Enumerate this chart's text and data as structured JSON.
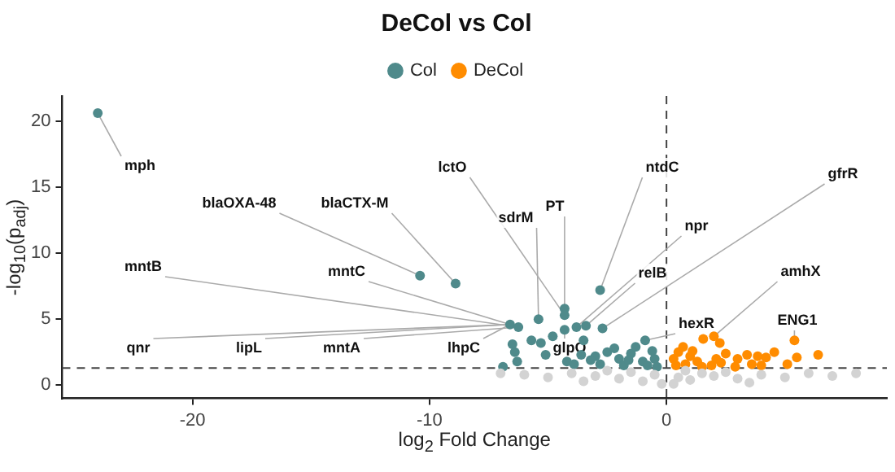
{
  "chart_data": {
    "type": "scatter",
    "title": "DeCol vs Col",
    "xlabel": "log$_{2}$ Fold Change",
    "ylabel": "-log$_{10}$(p$_{adj}$)",
    "xlim": [
      -25.5,
      9.3
    ],
    "xticks": [
      -20,
      -10,
      0
    ],
    "ylim": [
      -1,
      21.9
    ],
    "yticks": [
      0,
      5,
      10,
      15,
      20
    ],
    "grid": false,
    "legend": "top",
    "marker": "circle",
    "ref_lines": [
      {
        "axis": "x",
        "value": 0,
        "line_style": "dashed",
        "color": "#444444"
      },
      {
        "axis": "y",
        "value": 1.3,
        "line_style": "dashed",
        "color": "#444444"
      }
    ],
    "series": [
      {
        "color": "#d3d3d3",
        "x": [
          -7,
          -6,
          -5,
          -4,
          -3,
          -2,
          -1,
          -0.5,
          0.5,
          1,
          1.5,
          2,
          3,
          4,
          5,
          6,
          7,
          8,
          -1.5,
          -2.5,
          0.8,
          2.5,
          -3.5,
          3.5,
          -0.2,
          0.3
        ],
        "values": [
          0.9,
          0.8,
          0.6,
          0.9,
          0.7,
          0.5,
          0.3,
          0.8,
          0.6,
          0.4,
          0.9,
          0.7,
          0.5,
          0.8,
          0.6,
          0.9,
          0.7,
          0.9,
          1.0,
          1.1,
          1.1,
          1.0,
          0.3,
          0.2,
          0.1,
          0.1
        ]
      },
      {
        "name": "Col",
        "color": "#4f8a8b",
        "x": [
          -24,
          -10.4,
          -8.9,
          -2.8,
          -4.3,
          -4.3,
          -5.4,
          -6.6,
          -6.25,
          -3.4,
          -3.8,
          -4.3,
          -2.7,
          -0.9,
          -5.7,
          -5.3,
          -4.8,
          -3.5,
          -6.5,
          -6.4,
          -6.9,
          -6.3,
          -5.1,
          -4.2,
          -3,
          -2.5,
          -2,
          -1.5,
          -1,
          -0.5,
          -2.8,
          -1.8,
          -0.8,
          -2.2,
          -1.3,
          -3.2,
          -0.4,
          -1.6,
          -0.6,
          -3.6,
          -3.9
        ],
        "values": [
          20.6,
          8.3,
          7.7,
          7.2,
          5.8,
          5.3,
          5,
          4.6,
          4.4,
          4.5,
          4.4,
          4.2,
          4.3,
          3.4,
          3.4,
          3.2,
          3.7,
          3.4,
          3.1,
          2.5,
          1.4,
          1.8,
          2.3,
          1.8,
          2.2,
          2.5,
          2,
          2.4,
          1.8,
          2,
          1.6,
          1.5,
          1.5,
          2.8,
          2.9,
          1.9,
          1.4,
          1.9,
          2.6,
          2.3,
          1.6
        ]
      },
      {
        "name": "DeCol",
        "color": "#ff8c00",
        "x": [
          5.4,
          6.4,
          2,
          1.55,
          4.55,
          5.5,
          5.1,
          3.85,
          3.4,
          2.9,
          2.5,
          2.25,
          0.3,
          0.5,
          0.8,
          1,
          1.3,
          1.9,
          2.1,
          0.4,
          1.1,
          2.3,
          0.7,
          1.5,
          3,
          3.6,
          4.2,
          4
        ],
        "values": [
          3.4,
          2.3,
          3.7,
          3.5,
          2.5,
          2.1,
          1.6,
          2.2,
          2.3,
          1.4,
          2.4,
          3.2,
          2,
          2.5,
          1.6,
          2.2,
          1.8,
          1.5,
          2,
          1.5,
          2.6,
          1.7,
          2.9,
          1.4,
          2,
          1.6,
          2.1,
          1.5
        ]
      }
    ],
    "annotations": [
      {
        "text": "mph",
        "x": -24,
        "y": 20.6
      },
      {
        "text": "blaOXA-48",
        "x": -10.4,
        "y": 8.3
      },
      {
        "text": "blaCTX-M",
        "x": -8.9,
        "y": 7.7
      },
      {
        "text": "lctO",
        "x": -4.3,
        "y": 5.3
      },
      {
        "text": "PT",
        "x": -4.3,
        "y": 5.8
      },
      {
        "text": "ntdC",
        "x": -2.8,
        "y": 7.2
      },
      {
        "text": "npr",
        "x": -3.8,
        "y": 4.4
      },
      {
        "text": "relB",
        "x": -3.4,
        "y": 4.5
      },
      {
        "text": "gfrR",
        "x": -2.7,
        "y": 4.3
      },
      {
        "text": "sdrM",
        "x": -5.4,
        "y": 5
      },
      {
        "text": "mntC",
        "x": -6.6,
        "y": 4.6
      },
      {
        "text": "mntB",
        "x": -6.25,
        "y": 4.4
      },
      {
        "text": "qnr",
        "x": -6.6,
        "y": 4.6
      },
      {
        "text": "lipL",
        "x": -6.6,
        "y": 4.6
      },
      {
        "text": "mntA",
        "x": -6.25,
        "y": 4.4
      },
      {
        "text": "lhpC",
        "x": -6.6,
        "y": 4.6
      },
      {
        "text": "glpO",
        "x": -4.3,
        "y": 4.2
      },
      {
        "text": "hexR",
        "x": -0.9,
        "y": 3.4
      },
      {
        "text": "amhX",
        "x": 2,
        "y": 3.7
      },
      {
        "text": "ENG1",
        "x": 5.4,
        "y": 3.4
      }
    ]
  }
}
